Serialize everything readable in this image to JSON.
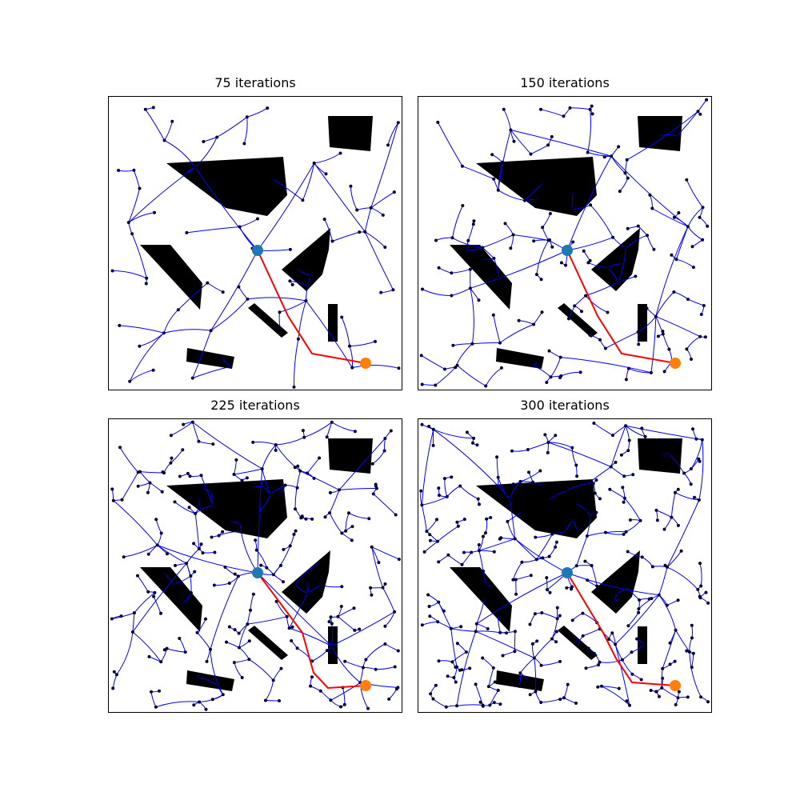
{
  "panels": [
    {
      "title": "75 iterations"
    },
    {
      "title": "150 iterations"
    },
    {
      "title": "225 iterations"
    },
    {
      "title": "300 iterations"
    }
  ],
  "colors": {
    "tree": "#0000ff",
    "node": "#000033",
    "path": "#ff0000",
    "start": "#1f77b4",
    "goal": "#ff7f0e",
    "obstacle": "#000000",
    "frame": "#000000"
  }
}
